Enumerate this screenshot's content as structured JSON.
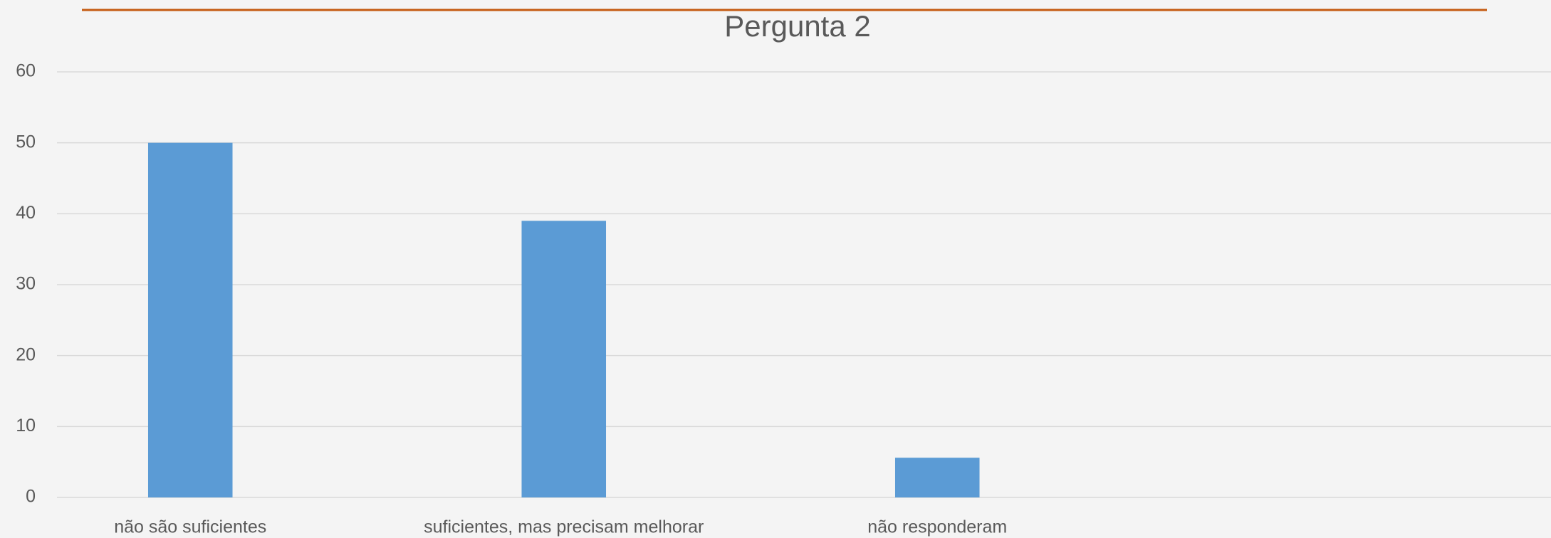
{
  "chart_data": {
    "type": "bar",
    "title": "Pergunta 2",
    "categories": [
      "não são suficientes",
      "suficientes, mas precisam melhorar",
      "não responderam",
      null
    ],
    "values": [
      50,
      39,
      5.6,
      null
    ],
    "color": "#5b9bd5",
    "ylim": [
      0,
      60
    ],
    "yticks": [
      0,
      10,
      20,
      30,
      40,
      50,
      60
    ],
    "grid": true
  }
}
